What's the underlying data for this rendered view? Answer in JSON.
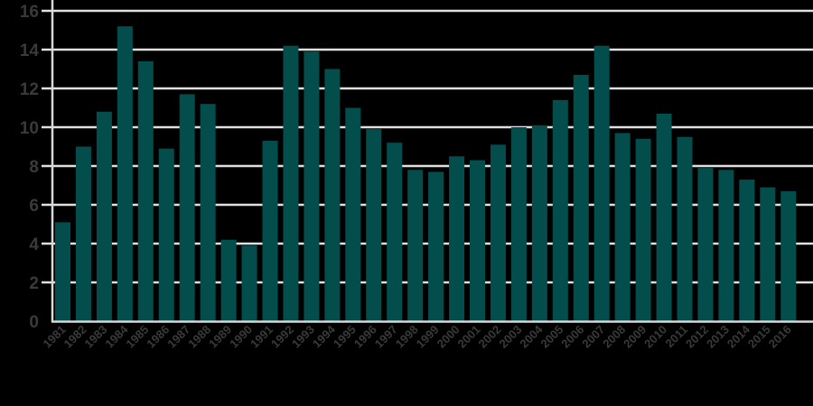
{
  "chart_data": {
    "type": "bar",
    "title": "",
    "xlabel": "",
    "ylabel": "",
    "ylim": [
      0,
      16
    ],
    "yticks": [
      0,
      2,
      4,
      6,
      8,
      10,
      12,
      14,
      16
    ],
    "grid": true,
    "legend": null,
    "categories": [
      "1981",
      "1982",
      "1983",
      "1984",
      "1985",
      "1986",
      "1987",
      "1988",
      "1989",
      "1990",
      "1991",
      "1992",
      "1993",
      "1994",
      "1995",
      "1996",
      "1997",
      "1998",
      "1999",
      "2000",
      "2001",
      "2002",
      "2003",
      "2004",
      "2005",
      "2006",
      "2007",
      "2008",
      "2009",
      "2010",
      "2011",
      "2012",
      "2013",
      "2014",
      "2015",
      "2016"
    ],
    "values": [
      5.1,
      9.0,
      10.8,
      15.2,
      13.4,
      8.9,
      11.7,
      11.2,
      4.2,
      3.9,
      9.3,
      14.2,
      13.9,
      13.0,
      11.0,
      9.9,
      9.2,
      7.8,
      7.7,
      8.5,
      8.3,
      9.1,
      10.0,
      10.1,
      11.4,
      12.7,
      14.2,
      9.7,
      9.4,
      10.7,
      9.5,
      7.9,
      7.8,
      7.3,
      6.9,
      6.7
    ]
  },
  "colors": {
    "background": "#000000",
    "bar": "#034d4d",
    "grid": "#e0e0e0",
    "axis": "#d8d8d8",
    "tick_text": "#3a3a3a"
  }
}
